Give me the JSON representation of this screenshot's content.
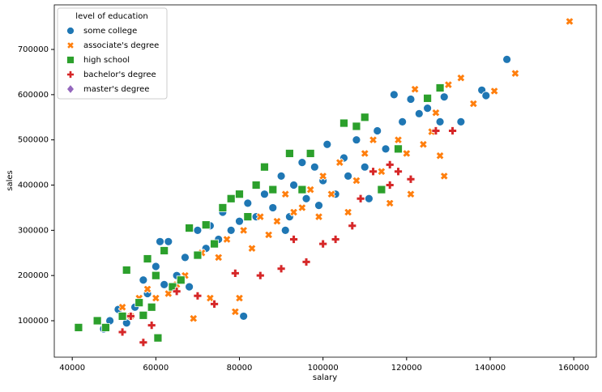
{
  "chart_data": {
    "type": "scatter",
    "x_label": "salary",
    "y_label": "sales",
    "legend_title": "level of education",
    "legend_position": "upper left",
    "xlim": [
      35700,
      165400
    ],
    "ylim": [
      19400,
      798600
    ],
    "xticks": [
      40000,
      60000,
      80000,
      100000,
      120000,
      140000,
      160000
    ],
    "yticks": [
      100000,
      200000,
      300000,
      400000,
      500000,
      600000,
      700000
    ],
    "grid": false,
    "series": [
      {
        "name": "some college",
        "color": "#1f77b4",
        "marker": "circle",
        "x": [
          47500,
          49000,
          51000,
          53000,
          55000,
          57000,
          58000,
          60000,
          61000,
          63000,
          62000,
          65000,
          67000,
          68000,
          70000,
          72000,
          73000,
          75000,
          76000,
          78000,
          80000,
          81000,
          82000,
          84000,
          86000,
          88000,
          90000,
          91000,
          93000,
          95000,
          96000,
          98000,
          100000,
          101000,
          103000,
          105000,
          106000,
          108000,
          110000,
          111000,
          113000,
          115000,
          117000,
          119000,
          121000,
          123000,
          125000,
          128000,
          129000,
          133000,
          138000,
          139000,
          144000,
          92000,
          99000
        ],
        "values": [
          82000,
          100000,
          125000,
          95000,
          130000,
          190000,
          160000,
          220000,
          275000,
          275000,
          180000,
          200000,
          240000,
          175000,
          300000,
          260000,
          310000,
          280000,
          340000,
          300000,
          320000,
          110000,
          360000,
          330000,
          380000,
          350000,
          420000,
          300000,
          400000,
          450000,
          370000,
          440000,
          410000,
          490000,
          380000,
          460000,
          420000,
          500000,
          440000,
          370000,
          520000,
          480000,
          600000,
          540000,
          590000,
          558000,
          570000,
          540000,
          595000,
          540000,
          610000,
          598000,
          678000,
          330000,
          355000
        ]
      },
      {
        "name": "associate's degree",
        "color": "#ff7f0e",
        "marker": "x",
        "x": [
          159000,
          146000,
          141000,
          136000,
          133000,
          130000,
          129000,
          128000,
          127000,
          124000,
          121000,
          120000,
          118000,
          116000,
          114000,
          112000,
          110000,
          108000,
          106000,
          104000,
          102000,
          100000,
          99000,
          97000,
          95000,
          93000,
          91000,
          89000,
          87000,
          85000,
          83000,
          81000,
          80000,
          79000,
          77000,
          75000,
          73000,
          71000,
          69000,
          67000,
          65000,
          63000,
          60000,
          58000,
          56000,
          54000,
          52000,
          122000,
          126000
        ],
        "values": [
          762000,
          647000,
          608000,
          580000,
          637000,
          622000,
          420000,
          465000,
          560000,
          490000,
          380000,
          470000,
          500000,
          360000,
          430000,
          500000,
          470000,
          410000,
          340000,
          450000,
          380000,
          420000,
          330000,
          390000,
          350000,
          340000,
          380000,
          320000,
          290000,
          330000,
          260000,
          300000,
          150000,
          120000,
          280000,
          240000,
          150000,
          250000,
          105000,
          200000,
          180000,
          160000,
          150000,
          170000,
          150000,
          110000,
          130000,
          612000,
          518000
        ]
      },
      {
        "name": "high school",
        "color": "#2ca02c",
        "marker": "square",
        "x": [
          41500,
          46000,
          48000,
          52000,
          53000,
          56000,
          58000,
          57000,
          59000,
          60000,
          60500,
          62000,
          64000,
          66000,
          68000,
          70000,
          72000,
          74000,
          76000,
          78000,
          80000,
          82000,
          84000,
          86000,
          88000,
          92000,
          95000,
          97000,
          105000,
          108000,
          110000,
          114000,
          118000,
          125000,
          128000
        ],
        "values": [
          85000,
          100000,
          85000,
          110000,
          212000,
          140000,
          237000,
          112000,
          130000,
          200000,
          62000,
          255000,
          175000,
          190000,
          305000,
          245000,
          312000,
          270000,
          350000,
          370000,
          380000,
          330000,
          400000,
          440000,
          390000,
          470000,
          390000,
          470000,
          537000,
          530000,
          550000,
          390000,
          480000,
          592000,
          615000
        ]
      },
      {
        "name": "bachelor's degree",
        "color": "#d62728",
        "marker": "plus",
        "x": [
          52000,
          54000,
          57000,
          59000,
          65000,
          70000,
          74000,
          79000,
          85000,
          90000,
          93000,
          96000,
          100000,
          103000,
          107000,
          109000,
          112000,
          116000,
          118000,
          121000,
          127000,
          131000,
          116000
        ],
        "values": [
          75000,
          110000,
          52000,
          90000,
          165000,
          155000,
          137000,
          205000,
          200000,
          215000,
          280000,
          230000,
          270000,
          280000,
          310000,
          370000,
          430000,
          400000,
          430000,
          413000,
          520000,
          520000,
          445000
        ]
      },
      {
        "name": "master's degree",
        "color": "#9467bd",
        "marker": "diamond",
        "x": [],
        "values": []
      }
    ]
  }
}
